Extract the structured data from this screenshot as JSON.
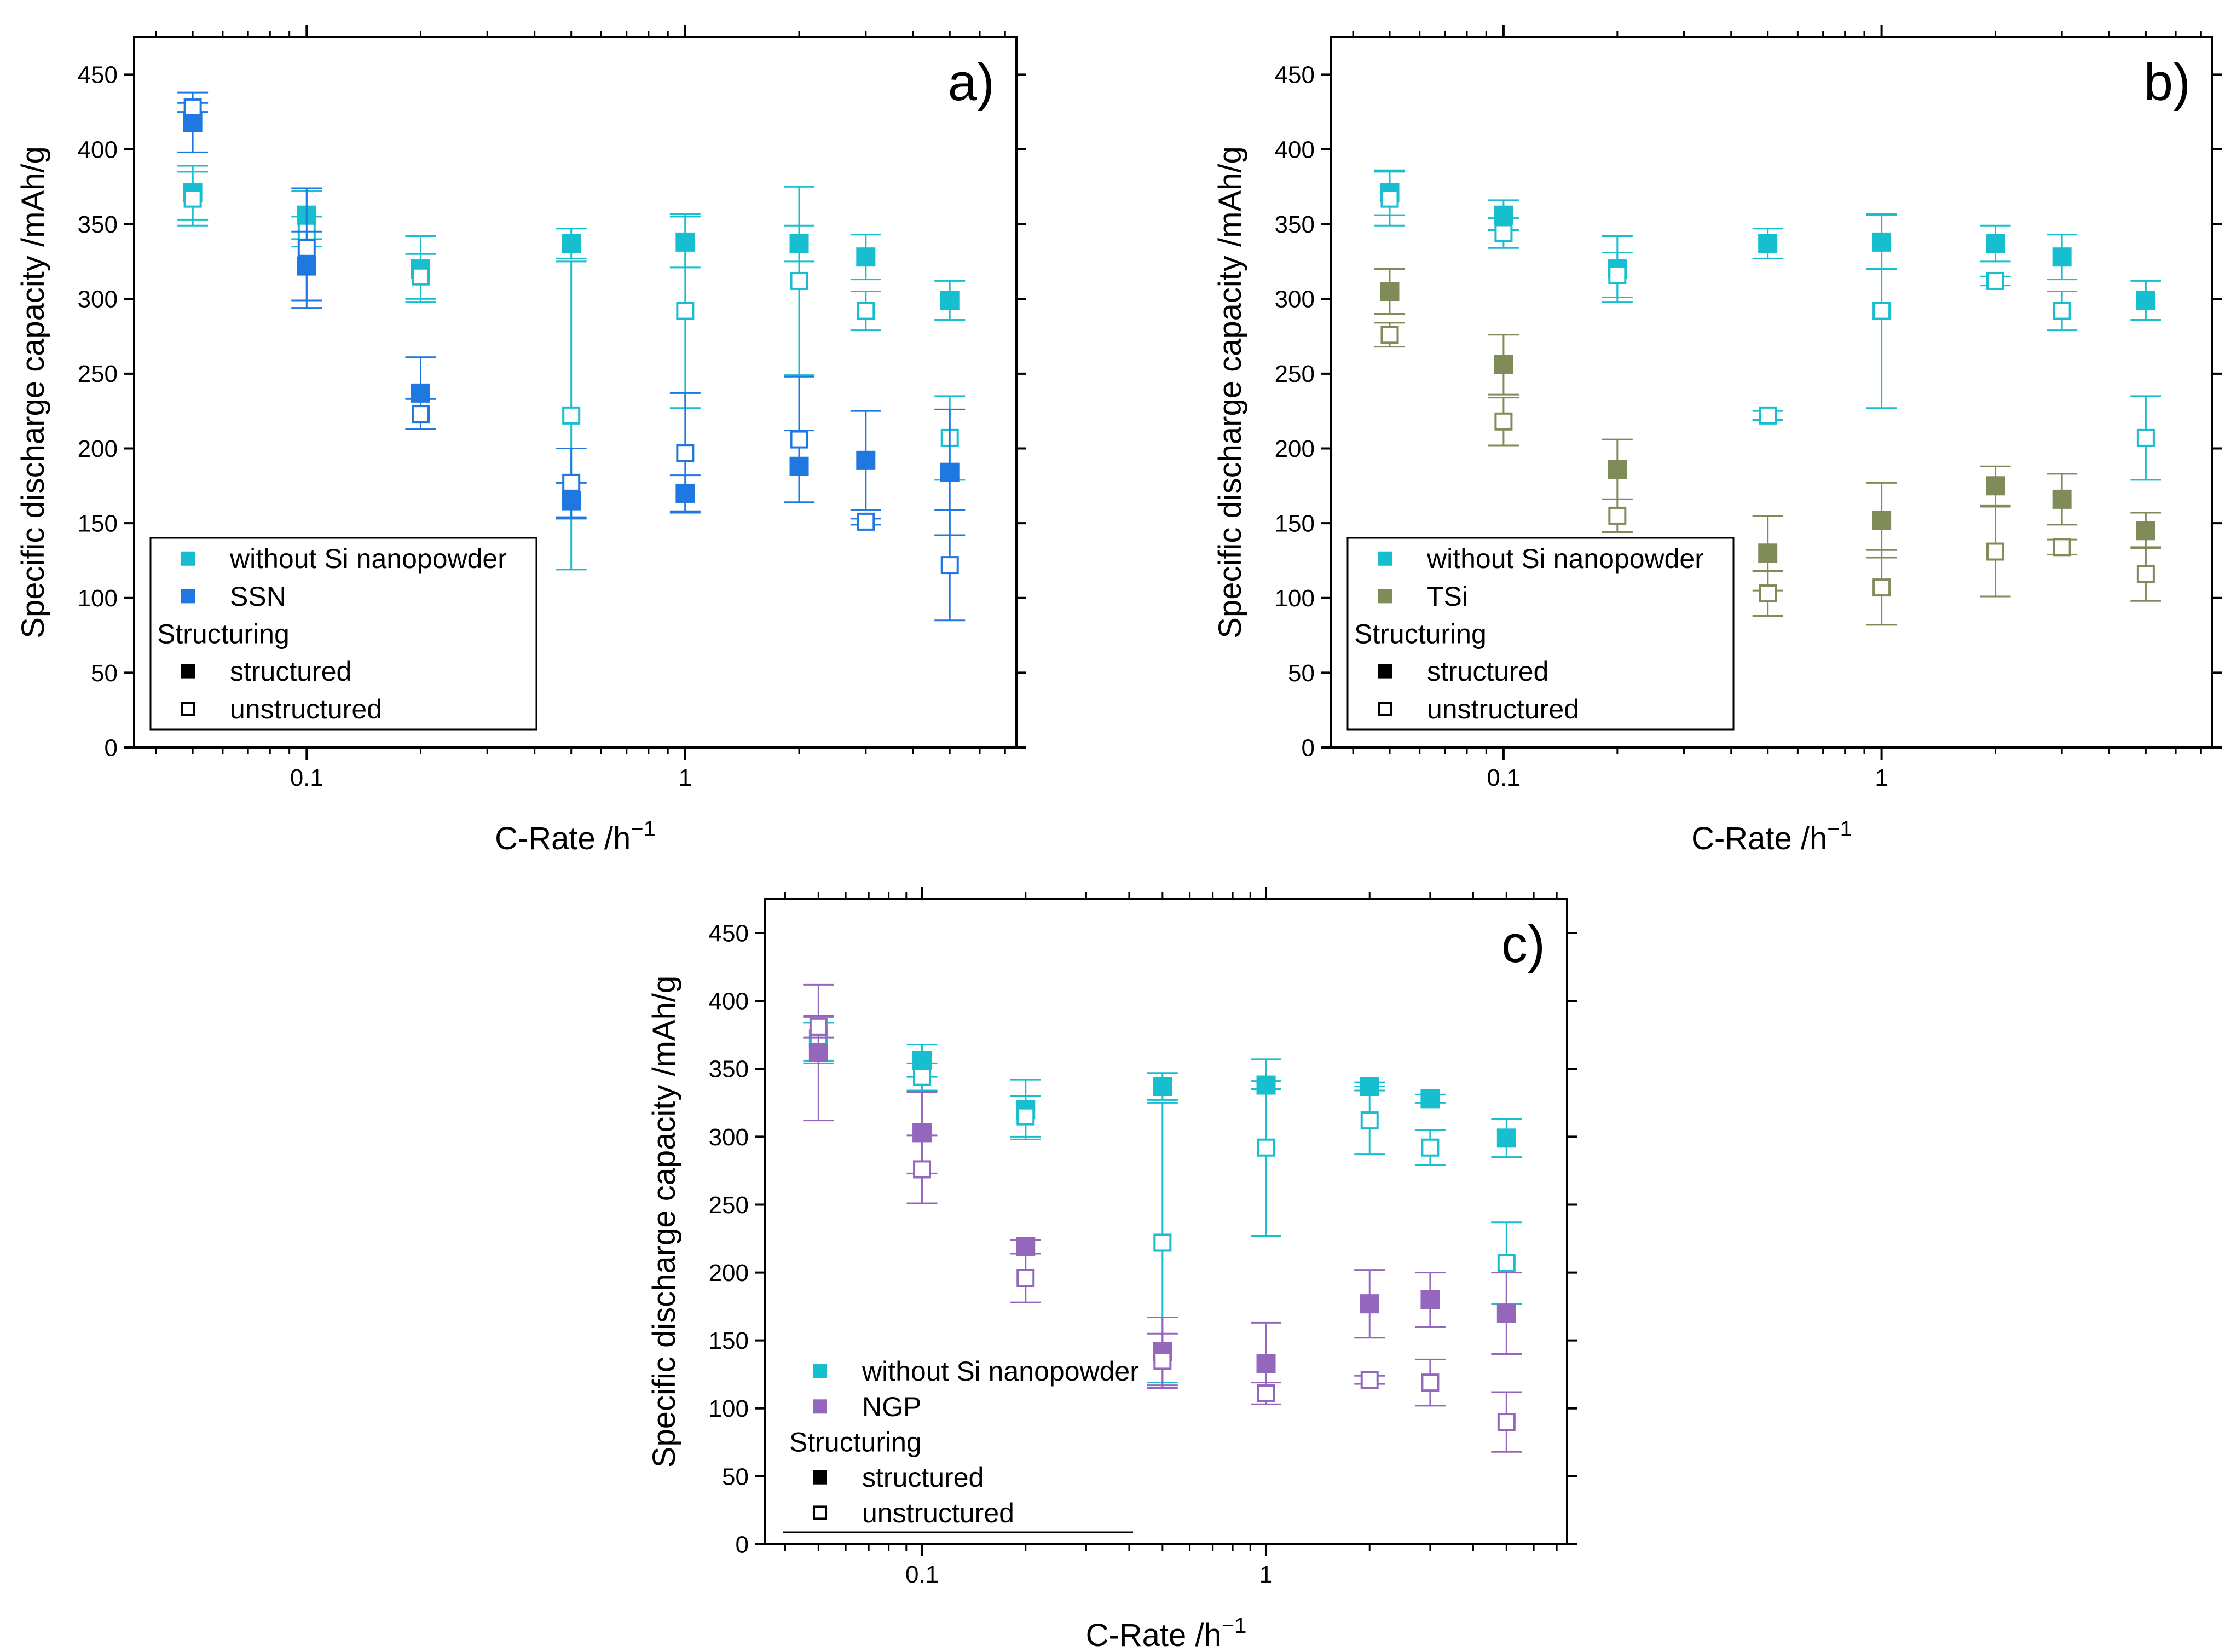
{
  "chart_data": [
    {
      "panel": "a)",
      "type": "scatter",
      "xscale": "log",
      "xlim": [
        0.035,
        7.5
      ],
      "ylim": [
        0,
        475
      ],
      "xticks": [
        {
          "value": 0.1,
          "label": "0.1"
        },
        {
          "value": 1,
          "label": "1"
        }
      ],
      "yticks": [
        0,
        50,
        100,
        150,
        200,
        250,
        300,
        350,
        400,
        450
      ],
      "xlabel": "C-Rate /h",
      "xlabel_sup": "−1",
      "ylabel": "Specific discharge capacity /mAh/g",
      "legend": {
        "location": "bottom-left",
        "entries": [
          "without Si nanopowder",
          "SSN"
        ],
        "structuring_title": "Structuring",
        "structured": "structured",
        "unstructured": "unstructured"
      },
      "x": [
        0.05,
        0.1,
        0.2,
        0.5,
        1,
        2,
        3,
        5
      ],
      "series": [
        {
          "name": "without Si nanopowder",
          "filled": true,
          "color": "#17becf",
          "values": [
            371,
            356,
            320,
            337,
            338,
            337,
            328,
            299
          ],
          "errors": [
            18,
            16,
            22,
            10,
            17,
            12,
            15,
            13
          ]
        },
        {
          "name": "without Si nanopowder",
          "filled": false,
          "color": "#17becf",
          "values": [
            367,
            345,
            315,
            222,
            292,
            312,
            292,
            207
          ],
          "errors": [
            18,
            10,
            15,
            103,
            65,
            63,
            13,
            28
          ]
        },
        {
          "name": "SSN",
          "filled": true,
          "color": "#1f77e0",
          "values": [
            418,
            322,
            237,
            165,
            170,
            188,
            192,
            184
          ],
          "errors": [
            20,
            23,
            24,
            12,
            12,
            24,
            33,
            42
          ]
        },
        {
          "name": "SSN",
          "filled": false,
          "color": "#1f77e0",
          "values": [
            428,
            334,
            223,
            177,
            197,
            206,
            151,
            122
          ],
          "errors": [
            3,
            40,
            10,
            23,
            40,
            42,
            2,
            37
          ]
        }
      ]
    },
    {
      "panel": "b)",
      "type": "scatter",
      "xscale": "log",
      "xlim": [
        0.035,
        7.5
      ],
      "ylim": [
        0,
        475
      ],
      "xticks": [
        {
          "value": 0.1,
          "label": "0.1"
        },
        {
          "value": 1,
          "label": "1"
        }
      ],
      "yticks": [
        0,
        50,
        100,
        150,
        200,
        250,
        300,
        350,
        400,
        450
      ],
      "xlabel": "C-Rate /h",
      "xlabel_sup": "−1",
      "ylabel": "Specific discharge capacity /mAh/g",
      "legend": {
        "location": "bottom-left",
        "entries": [
          "without Si nanopowder",
          "TSi"
        ],
        "structuring_title": "Structuring",
        "structured": "structured",
        "unstructured": "unstructured"
      },
      "x": [
        0.05,
        0.1,
        0.2,
        0.5,
        1,
        2,
        3,
        5
      ],
      "series": [
        {
          "name": "without Si nanopowder",
          "filled": true,
          "color": "#17becf",
          "values": [
            371,
            356,
            320,
            337,
            338,
            337,
            328,
            299
          ],
          "errors": [
            15,
            10,
            22,
            10,
            18,
            12,
            15,
            13
          ]
        },
        {
          "name": "without Si nanopowder",
          "filled": false,
          "color": "#17becf",
          "values": [
            367,
            344,
            316,
            222,
            292,
            312,
            292,
            207
          ],
          "errors": [
            18,
            10,
            15,
            3,
            65,
            3,
            13,
            28
          ]
        },
        {
          "name": "TSi",
          "filled": true,
          "color": "#7f8c5a",
          "values": [
            305,
            256,
            186,
            130,
            152,
            175,
            166,
            145
          ],
          "errors": [
            15,
            20,
            20,
            25,
            25,
            13,
            17,
            12
          ]
        },
        {
          "name": "TSi",
          "filled": false,
          "color": "#7f8c5a",
          "values": [
            276,
            218,
            155,
            103,
            107,
            131,
            134,
            116
          ],
          "errors": [
            8,
            16,
            11,
            15,
            25,
            30,
            5,
            18
          ]
        }
      ]
    },
    {
      "panel": "c)",
      "type": "scatter",
      "xscale": "log",
      "xlim": [
        0.035,
        7.5
      ],
      "ylim": [
        0,
        475
      ],
      "xticks": [
        {
          "value": 0.1,
          "label": "0.1"
        },
        {
          "value": 1,
          "label": "1"
        }
      ],
      "yticks": [
        0,
        50,
        100,
        150,
        200,
        250,
        300,
        350,
        400,
        450
      ],
      "xlabel": "C-Rate /h",
      "xlabel_sup": "−1",
      "ylabel": "Specific discharge capacity /mAh/g",
      "legend": {
        "location": "bottom-left",
        "entries": [
          "without Si nanopowder",
          "NGP"
        ],
        "structuring_title": "Structuring",
        "structured": "structured",
        "unstructured": "unstructured"
      },
      "x": [
        0.05,
        0.1,
        0.2,
        0.5,
        1,
        2,
        3,
        5
      ],
      "series": [
        {
          "name": "without Si nanopowder",
          "filled": true,
          "color": "#17becf",
          "values": [
            372,
            356,
            320,
            337,
            338,
            337,
            328,
            299
          ],
          "errors": [
            16,
            12,
            22,
            10,
            3,
            3,
            3,
            14
          ]
        },
        {
          "name": "without Si nanopowder",
          "filled": false,
          "color": "#17becf",
          "values": [
            369,
            344,
            315,
            222,
            292,
            312,
            292,
            207
          ],
          "errors": [
            15,
            10,
            15,
            103,
            65,
            25,
            13,
            30
          ]
        },
        {
          "name": "NGP",
          "filled": true,
          "color": "#9467bd",
          "values": [
            362,
            303,
            219,
            142,
            133,
            177,
            180,
            170
          ],
          "errors": [
            50,
            30,
            5,
            25,
            30,
            25,
            20,
            30
          ]
        },
        {
          "name": "NGP",
          "filled": false,
          "color": "#9467bd",
          "values": [
            381,
            276,
            196,
            135,
            111,
            121,
            119,
            90
          ],
          "errors": [
            8,
            25,
            18,
            20,
            8,
            3,
            17,
            22
          ]
        }
      ]
    }
  ]
}
